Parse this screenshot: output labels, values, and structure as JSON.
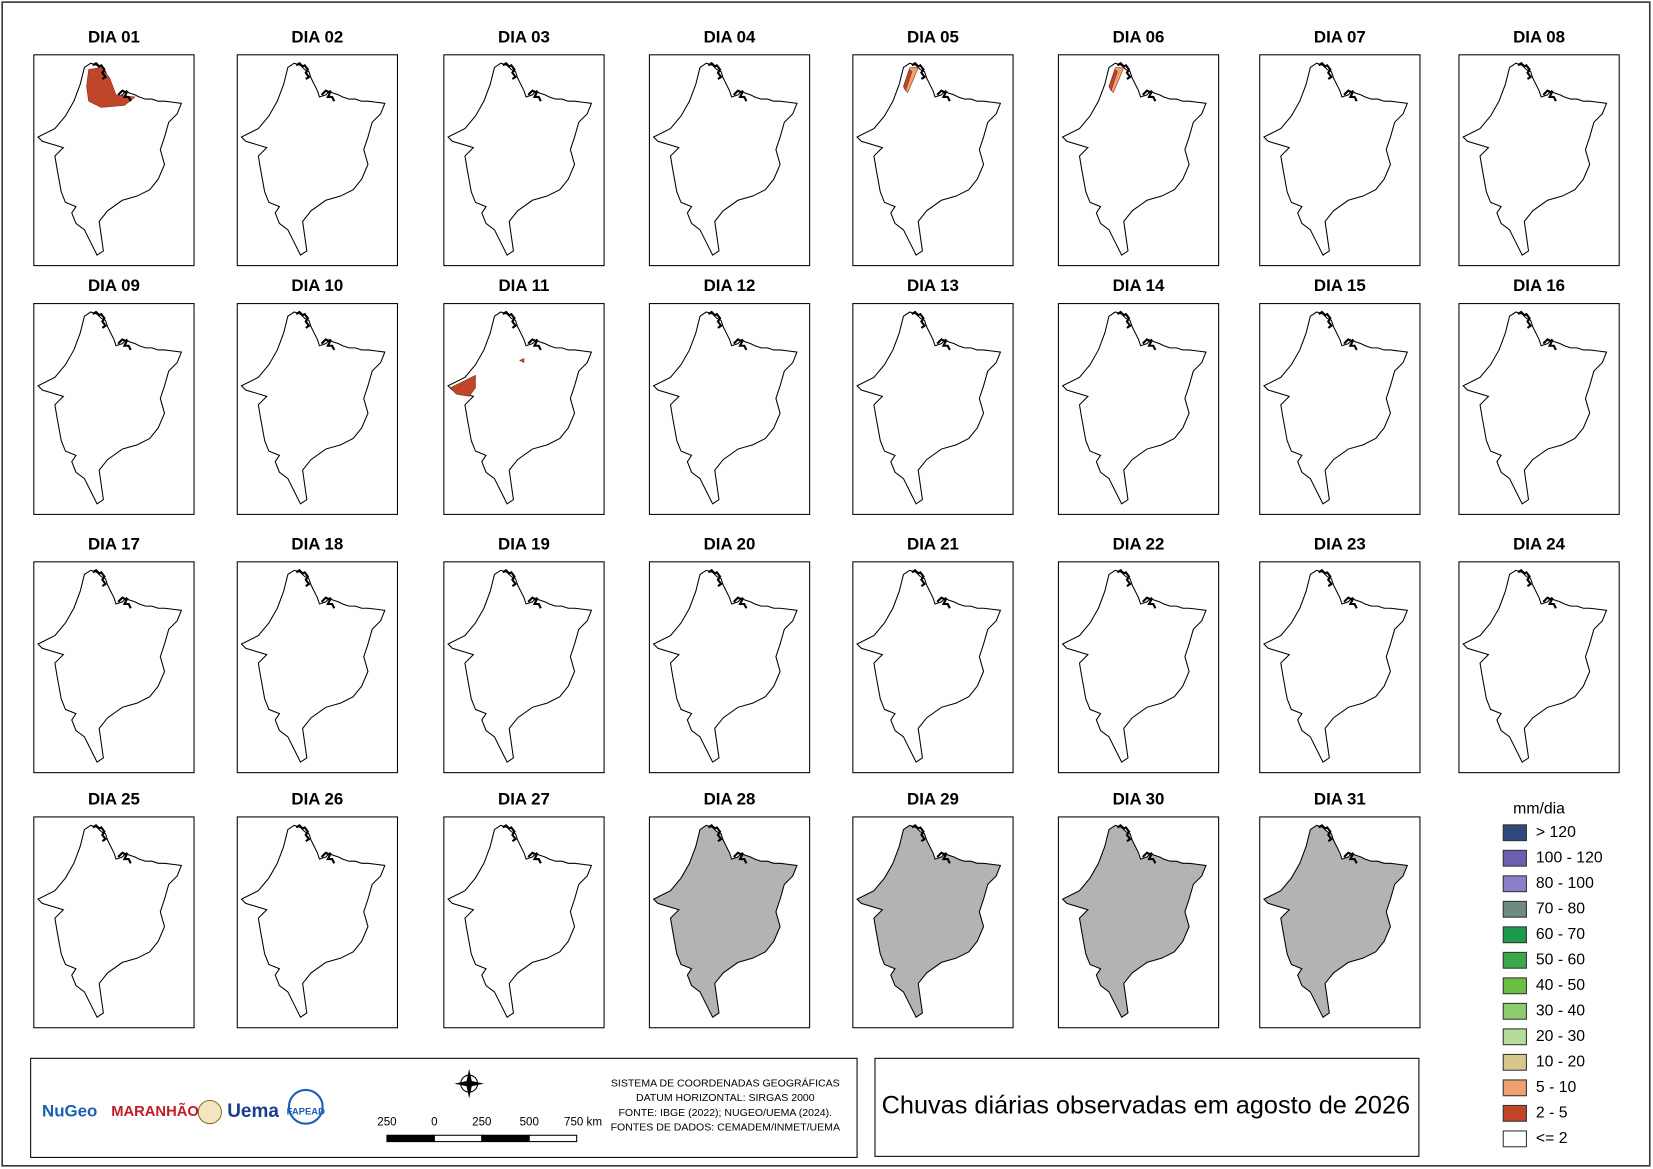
{
  "panels": [
    {
      "title": "DIA 01"
    },
    {
      "title": "DIA 02"
    },
    {
      "title": "DIA 03"
    },
    {
      "title": "DIA 04"
    },
    {
      "title": "DIA 05"
    },
    {
      "title": "DIA 06"
    },
    {
      "title": "DIA 07"
    },
    {
      "title": "DIA 08"
    },
    {
      "title": "DIA 09"
    },
    {
      "title": "DIA 10"
    },
    {
      "title": "DIA 11"
    },
    {
      "title": "DIA 12"
    },
    {
      "title": "DIA 13"
    },
    {
      "title": "DIA 14"
    },
    {
      "title": "DIA 15"
    },
    {
      "title": "DIA 16"
    },
    {
      "title": "DIA 17"
    },
    {
      "title": "DIA 18"
    },
    {
      "title": "DIA 19"
    },
    {
      "title": "DIA 20"
    },
    {
      "title": "DIA 21"
    },
    {
      "title": "DIA 22"
    },
    {
      "title": "DIA 23"
    },
    {
      "title": "DIA 24"
    },
    {
      "title": "DIA 25"
    },
    {
      "title": "DIA 26"
    },
    {
      "title": "DIA 27"
    },
    {
      "title": "DIA 28"
    },
    {
      "title": "DIA 29"
    },
    {
      "title": "DIA 30"
    },
    {
      "title": "DIA 31"
    }
  ],
  "legend": {
    "title": "mm/dia",
    "items": [
      {
        "label": "> 120",
        "color": "#2e4a7c"
      },
      {
        "label": "100 - 120",
        "color": "#6a5fb0"
      },
      {
        "label": "80 - 100",
        "color": "#8c7fc7"
      },
      {
        "label": "70 - 80",
        "color": "#6f8a80"
      },
      {
        "label": "60 - 70",
        "color": "#1a9a4a"
      },
      {
        "label": "50 - 60",
        "color": "#3aa84a"
      },
      {
        "label": "40 - 50",
        "color": "#6cbf45"
      },
      {
        "label": "30 - 40",
        "color": "#8fcc6e"
      },
      {
        "label": "20 - 30",
        "color": "#b5dc9a"
      },
      {
        "label": "10 - 20",
        "color": "#d9c58e"
      },
      {
        "label": "5 - 10",
        "color": "#f0a070"
      },
      {
        "label": "2 - 5",
        "color": "#c0462a"
      },
      {
        "label": "<= 2",
        "color": "#ffffff"
      }
    ]
  },
  "scale_bar": {
    "labels": [
      "250",
      "0",
      "250",
      "500",
      "750 km"
    ]
  },
  "info": [
    "SISTEMA DE COORDENADAS GEOGRÁFICAS",
    "DATUM HORIZONTAL: SIRGAS 2000",
    "FONTE: IBGE (2022); NUGEO/UEMA (2024).",
    "FONTES DE DADOS: CEMADEM/INMET/UEMA"
  ],
  "logos": [
    "NuGeo",
    "MARANHÃO",
    "Uema",
    "FAPEAD"
  ],
  "title": "Chuvas diárias observadas em agosto de 2026"
}
